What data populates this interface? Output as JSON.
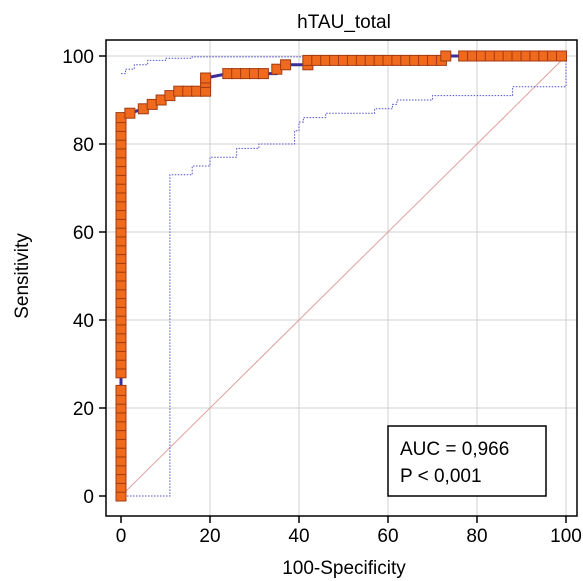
{
  "chart_data": {
    "type": "line",
    "title": "hTAU_total",
    "xlabel": "100-Specificity",
    "ylabel": "Sensitivity",
    "xlim": [
      0,
      100
    ],
    "ylim": [
      0,
      100
    ],
    "x_ticks": [
      "0",
      "20",
      "40",
      "60",
      "80",
      "100"
    ],
    "y_ticks": [
      "0",
      "20",
      "40",
      "60",
      "80",
      "100"
    ],
    "grid": true,
    "legend_box": {
      "lines": [
        "AUC = 0,966",
        "P < 0,001"
      ],
      "placement": "bottom-right"
    },
    "colors": {
      "roc_line": "#3a2e9c",
      "marker_fill": "#f06a1e",
      "marker_edge": "#a33a10",
      "ci_line": "#5050c8",
      "diagonal": "#e0a0a0",
      "grid": "#d0d0d0"
    },
    "series": [
      {
        "type": "step",
        "points": [
          [
            0,
            0
          ],
          [
            0,
            28
          ],
          [
            0,
            86
          ],
          [
            1,
            86
          ],
          [
            2,
            87
          ],
          [
            5,
            88
          ],
          [
            7,
            89
          ],
          [
            9,
            90
          ],
          [
            11,
            91
          ],
          [
            13,
            92
          ],
          [
            19,
            92
          ],
          [
            19,
            95
          ],
          [
            24,
            96
          ],
          [
            35,
            96
          ],
          [
            35,
            97
          ],
          [
            37,
            98
          ],
          [
            42,
            98
          ],
          [
            42,
            99
          ],
          [
            73,
            99
          ],
          [
            73,
            100
          ],
          [
            100,
            100
          ]
        ],
        "markers": [
          [
            0,
            0
          ],
          [
            0,
            2
          ],
          [
            0,
            4
          ],
          [
            0,
            6
          ],
          [
            0,
            8
          ],
          [
            0,
            10
          ],
          [
            0,
            12
          ],
          [
            0,
            14
          ],
          [
            0,
            16
          ],
          [
            0,
            18
          ],
          [
            0,
            20
          ],
          [
            0,
            22
          ],
          [
            0,
            24
          ],
          [
            0,
            28
          ],
          [
            0,
            30
          ],
          [
            0,
            32
          ],
          [
            0,
            34
          ],
          [
            0,
            36
          ],
          [
            0,
            38
          ],
          [
            0,
            40
          ],
          [
            0,
            42
          ],
          [
            0,
            44
          ],
          [
            0,
            46
          ],
          [
            0,
            48
          ],
          [
            0,
            50
          ],
          [
            0,
            52
          ],
          [
            0,
            54
          ],
          [
            0,
            56
          ],
          [
            0,
            58
          ],
          [
            0,
            60
          ],
          [
            0,
            62
          ],
          [
            0,
            64
          ],
          [
            0,
            66
          ],
          [
            0,
            68
          ],
          [
            0,
            70
          ],
          [
            0,
            72
          ],
          [
            0,
            74
          ],
          [
            0,
            76
          ],
          [
            0,
            78
          ],
          [
            0,
            80
          ],
          [
            0,
            82
          ],
          [
            0,
            84
          ],
          [
            0,
            86
          ],
          [
            2,
            87
          ],
          [
            5,
            88
          ],
          [
            7,
            89
          ],
          [
            9,
            90
          ],
          [
            11,
            91
          ],
          [
            13,
            92
          ],
          [
            15,
            92
          ],
          [
            17,
            92
          ],
          [
            19,
            92
          ],
          [
            19,
            94
          ],
          [
            19,
            95
          ],
          [
            24,
            96
          ],
          [
            26,
            96
          ],
          [
            28,
            96
          ],
          [
            30,
            96
          ],
          [
            32,
            96
          ],
          [
            35,
            97
          ],
          [
            37,
            98
          ],
          [
            42,
            98
          ],
          [
            42,
            99
          ],
          [
            44,
            99
          ],
          [
            46,
            99
          ],
          [
            48,
            99
          ],
          [
            50,
            99
          ],
          [
            52,
            99
          ],
          [
            54,
            99
          ],
          [
            56,
            99
          ],
          [
            58,
            99
          ],
          [
            60,
            99
          ],
          [
            62,
            99
          ],
          [
            64,
            99
          ],
          [
            66,
            99
          ],
          [
            68,
            99
          ],
          [
            70,
            99
          ],
          [
            72,
            99
          ],
          [
            73,
            100
          ],
          [
            77,
            100
          ],
          [
            79,
            100
          ],
          [
            81,
            100
          ],
          [
            83,
            100
          ],
          [
            85,
            100
          ],
          [
            87,
            100
          ],
          [
            89,
            100
          ],
          [
            91,
            100
          ],
          [
            93,
            100
          ],
          [
            95,
            100
          ],
          [
            97,
            100
          ],
          [
            99,
            100
          ]
        ]
      },
      {
        "type": "ci_upper",
        "points": [
          [
            0,
            96
          ],
          [
            1,
            96
          ],
          [
            1,
            97
          ],
          [
            3,
            97
          ],
          [
            3,
            98
          ],
          [
            6,
            98
          ],
          [
            6,
            99
          ],
          [
            10,
            99
          ],
          [
            10,
            99.5
          ],
          [
            16,
            99.5
          ],
          [
            16,
            99.8
          ],
          [
            100,
            99.8
          ]
        ]
      },
      {
        "type": "ci_lower",
        "points": [
          [
            0,
            0
          ],
          [
            11,
            0
          ],
          [
            11,
            73
          ],
          [
            16,
            73
          ],
          [
            16,
            75
          ],
          [
            20,
            75
          ],
          [
            20,
            77
          ],
          [
            26,
            77
          ],
          [
            26,
            79
          ],
          [
            31,
            79
          ],
          [
            31,
            80
          ],
          [
            39,
            80
          ],
          [
            39,
            83
          ],
          [
            40,
            83
          ],
          [
            40,
            85
          ],
          [
            41,
            85
          ],
          [
            41,
            86
          ],
          [
            46,
            86
          ],
          [
            46,
            87
          ],
          [
            57,
            87
          ],
          [
            57,
            88
          ],
          [
            61,
            88
          ],
          [
            61,
            89
          ],
          [
            62,
            89
          ],
          [
            62,
            90
          ],
          [
            70,
            90
          ],
          [
            70,
            91
          ],
          [
            88,
            91
          ],
          [
            88,
            93
          ],
          [
            100,
            93
          ],
          [
            100,
            100
          ]
        ]
      },
      {
        "type": "diagonal",
        "points": [
          [
            0,
            0
          ],
          [
            100,
            100
          ]
        ]
      }
    ]
  }
}
